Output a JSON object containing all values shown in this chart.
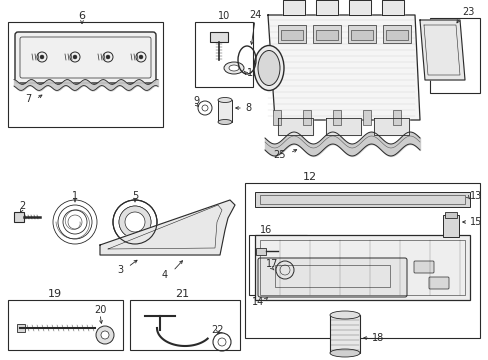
{
  "bg_color": "#ffffff",
  "line_color": "#2a2a2a",
  "figw": 4.89,
  "figh": 3.6,
  "dpi": 100
}
